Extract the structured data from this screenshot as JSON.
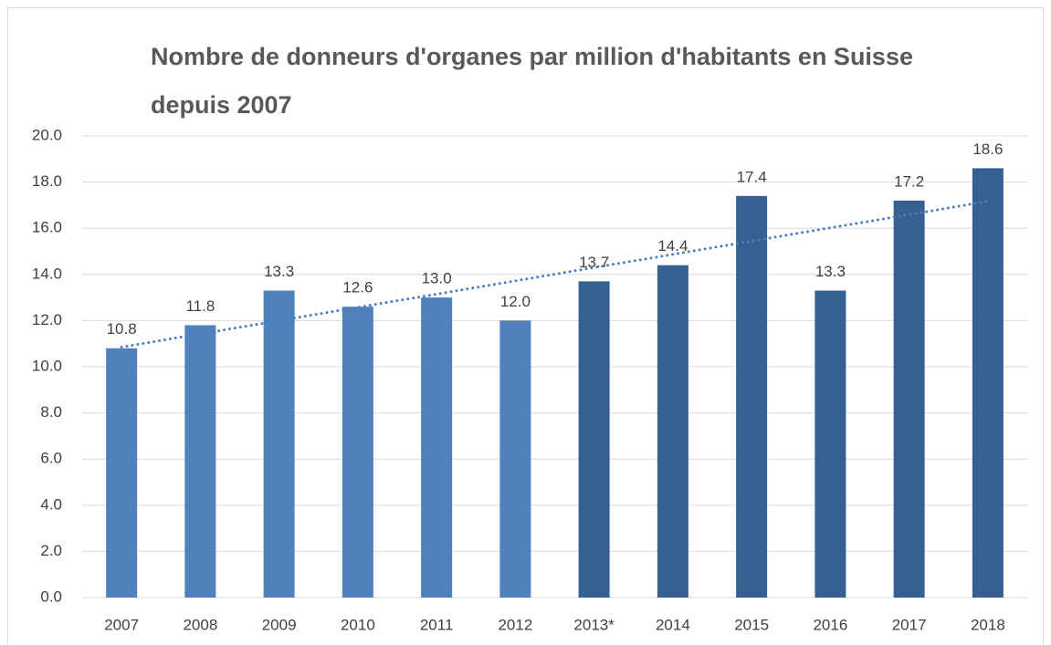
{
  "chart_data": {
    "type": "bar",
    "title": "Nombre de donneurs d'organes par million d'habitants en Suisse depuis 2007",
    "categories": [
      "2007",
      "2008",
      "2009",
      "2010",
      "2011",
      "2012",
      "2013*",
      "2014",
      "2015",
      "2016",
      "2017",
      "2018"
    ],
    "values": [
      10.8,
      11.8,
      13.3,
      12.6,
      13.0,
      12.0,
      13.7,
      14.4,
      17.4,
      13.3,
      17.2,
      18.6
    ],
    "value_labels": [
      "10.8",
      "11.8",
      "13.3",
      "12.6",
      "13.0",
      "12.0",
      "13.7",
      "14.4",
      "17.4",
      "13.3",
      "17.2",
      "18.6"
    ],
    "colors": [
      "#4f81bd",
      "#4f81bd",
      "#4f81bd",
      "#4f81bd",
      "#4f81bd",
      "#4f81bd",
      "#376092",
      "#376092",
      "#376092",
      "#376092",
      "#376092",
      "#376092"
    ],
    "ylim": [
      0,
      20
    ],
    "yticks": [
      {
        "value": 0,
        "label": "0.0"
      },
      {
        "value": 2,
        "label": "2.0"
      },
      {
        "value": 4,
        "label": "4.0"
      },
      {
        "value": 6,
        "label": "6.0"
      },
      {
        "value": 8,
        "label": "8.0"
      },
      {
        "value": 10,
        "label": "10.0"
      },
      {
        "value": 12,
        "label": "12.0"
      },
      {
        "value": 14,
        "label": "14.0"
      },
      {
        "value": 16,
        "label": "16.0"
      },
      {
        "value": 18,
        "label": "18.0"
      },
      {
        "value": 20,
        "label": "20.0"
      }
    ],
    "grid": true,
    "trendline": {
      "type": "linear",
      "color": "#4a7ebb"
    }
  }
}
